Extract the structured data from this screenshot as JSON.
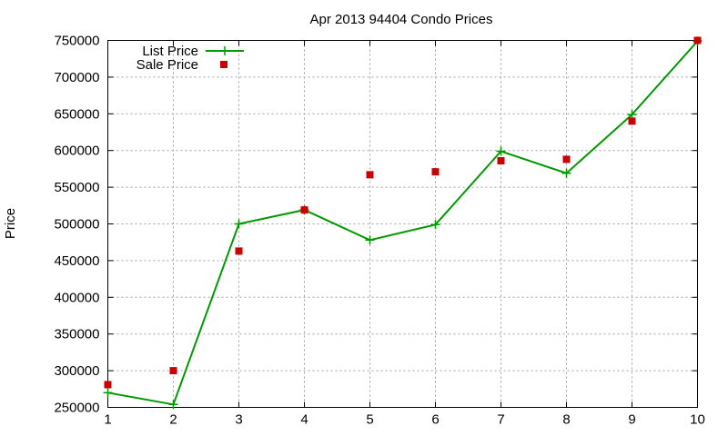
{
  "chart_data": {
    "type": "line",
    "title": "Apr 2013 94404 Condo Prices",
    "xlabel": "",
    "ylabel": "Price",
    "x": [
      1,
      2,
      3,
      4,
      5,
      6,
      7,
      8,
      9,
      10
    ],
    "xlim": [
      1,
      10
    ],
    "ylim": [
      250000,
      750000
    ],
    "xticks": [
      "1",
      "2",
      "3",
      "4",
      "5",
      "6",
      "7",
      "8",
      "9",
      "10"
    ],
    "yticks": [
      "250000",
      "300000",
      "350000",
      "400000",
      "450000",
      "500000",
      "550000",
      "600000",
      "650000",
      "700000",
      "750000"
    ],
    "grid": true,
    "legend_position": "top-left",
    "series": [
      {
        "name": "List Price",
        "style": "line+cross",
        "color": "#009900",
        "values": [
          270000,
          254000,
          500000,
          519000,
          478000,
          499000,
          599000,
          569000,
          649000,
          749000
        ]
      },
      {
        "name": "Sale Price",
        "style": "square",
        "color": "#cc0000",
        "values": [
          281000,
          300000,
          463000,
          519000,
          567000,
          571000,
          586000,
          588000,
          640000,
          750000
        ]
      }
    ]
  }
}
